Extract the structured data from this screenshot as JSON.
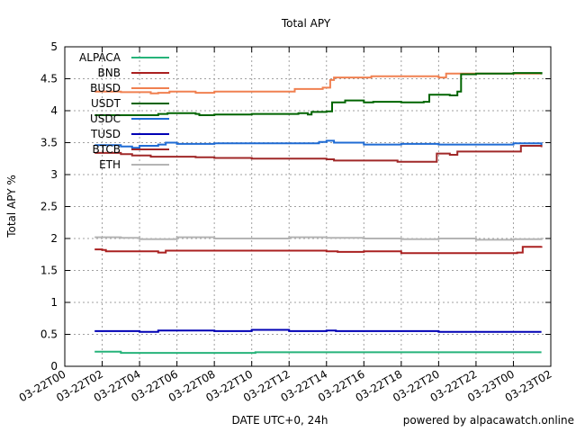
{
  "chart_data": {
    "type": "line",
    "title": "Total APY",
    "xlabel": "DATE UTC+0, 24h",
    "ylabel": "Total APY %",
    "credit": "powered by alpacawatch.online",
    "grid": true,
    "legend_position": "top-left",
    "ylim": [
      0,
      5
    ],
    "y_ticks": [
      "0",
      "0.5",
      "1",
      "1.5",
      "2",
      "2.5",
      "3",
      "3.5",
      "4",
      "4.5",
      "5"
    ],
    "xlim_hours": [
      0,
      26
    ],
    "x_ticks": [
      "03-22T00",
      "03-22T02",
      "03-22T04",
      "03-22T06",
      "03-22T08",
      "03-22T10",
      "03-22T12",
      "03-22T14",
      "03-22T16",
      "03-22T18",
      "03-22T20",
      "03-22T22",
      "03-23T00",
      "03-23T02"
    ],
    "series": [
      {
        "name": "ALPACA",
        "color": "#26b37a",
        "x": [
          1.6,
          2.8,
          3.0,
          10.0,
          10.2,
          25.5
        ],
        "y": [
          0.23,
          0.23,
          0.21,
          0.21,
          0.22,
          0.22
        ]
      },
      {
        "name": "BNB",
        "color": "#aa2020",
        "x": [
          1.6,
          2.0,
          2.2,
          4.5,
          5.0,
          5.4,
          10.0,
          14.0,
          14.6,
          16.0,
          18.0,
          20.2,
          20.4,
          24.2,
          24.5,
          25.5
        ],
        "y": [
          1.83,
          1.82,
          1.8,
          1.8,
          1.78,
          1.81,
          1.81,
          1.8,
          1.79,
          1.8,
          1.77,
          1.77,
          1.77,
          1.78,
          1.87,
          1.88
        ]
      },
      {
        "name": "BUSD",
        "color": "#f08050",
        "x": [
          1.6,
          3.0,
          4.0,
          4.6,
          5.0,
          5.6,
          7.0,
          8.0,
          12.0,
          12.3,
          13.8,
          14.2,
          14.4,
          16.0,
          16.4,
          18.0,
          20.0,
          20.4,
          21.0,
          24.0,
          25.5
        ],
        "y": [
          4.3,
          4.29,
          4.29,
          4.27,
          4.28,
          4.3,
          4.28,
          4.3,
          4.3,
          4.34,
          4.36,
          4.48,
          4.52,
          4.52,
          4.54,
          4.54,
          4.52,
          4.58,
          4.58,
          4.58,
          4.58
        ]
      },
      {
        "name": "USDT",
        "color": "#006400",
        "x": [
          1.6,
          3.0,
          5.0,
          5.5,
          7.0,
          7.2,
          8.0,
          10.0,
          12.0,
          12.5,
          13.0,
          13.2,
          14.0,
          14.3,
          15.0,
          16.0,
          16.5,
          18.0,
          19.2,
          19.5,
          20.6,
          21.0,
          21.2,
          22.0,
          24.0,
          25.5
        ],
        "y": [
          3.93,
          3.93,
          3.95,
          3.96,
          3.95,
          3.93,
          3.94,
          3.95,
          3.95,
          3.96,
          3.94,
          3.98,
          3.99,
          4.13,
          4.16,
          4.13,
          4.14,
          4.13,
          4.14,
          4.25,
          4.24,
          4.3,
          4.57,
          4.58,
          4.59,
          4.57
        ]
      },
      {
        "name": "USDC",
        "color": "#1f6bd4",
        "x": [
          1.6,
          3.0,
          3.6,
          4.0,
          4.6,
          5.0,
          5.4,
          6.0,
          8.0,
          10.0,
          12.0,
          13.6,
          14.0,
          14.4,
          16.0,
          18.0,
          20.0,
          22.0,
          24.0,
          25.3,
          25.5
        ],
        "y": [
          3.46,
          3.44,
          3.42,
          3.45,
          3.45,
          3.47,
          3.5,
          3.48,
          3.49,
          3.49,
          3.49,
          3.51,
          3.53,
          3.5,
          3.47,
          3.48,
          3.47,
          3.47,
          3.49,
          3.49,
          3.46
        ]
      },
      {
        "name": "TUSD",
        "color": "#0000b4",
        "x": [
          1.6,
          3.0,
          4.0,
          5.0,
          6.0,
          8.0,
          10.0,
          12.0,
          14.0,
          14.5,
          16.0,
          20.0,
          24.0,
          25.5
        ],
        "y": [
          0.55,
          0.55,
          0.54,
          0.56,
          0.56,
          0.55,
          0.57,
          0.55,
          0.56,
          0.55,
          0.55,
          0.54,
          0.54,
          0.54
        ]
      },
      {
        "name": "BTCB",
        "color": "#a02828",
        "x": [
          1.6,
          3.0,
          3.6,
          4.6,
          5.0,
          7.0,
          8.0,
          10.0,
          12.0,
          14.0,
          14.4,
          16.0,
          17.8,
          19.6,
          19.9,
          20.6,
          21.0,
          24.0,
          24.4,
          25.5
        ],
        "y": [
          3.34,
          3.32,
          3.3,
          3.28,
          3.28,
          3.27,
          3.26,
          3.25,
          3.25,
          3.24,
          3.22,
          3.22,
          3.2,
          3.2,
          3.33,
          3.31,
          3.36,
          3.36,
          3.45,
          3.43
        ]
      },
      {
        "name": "ETH",
        "color": "#b4b4b4",
        "x": [
          1.6,
          3.0,
          4.0,
          6.0,
          8.0,
          10.0,
          12.0,
          14.0,
          16.0,
          18.0,
          20.0,
          22.0,
          24.0,
          25.5
        ],
        "y": [
          2.02,
          2.01,
          1.99,
          2.02,
          2.0,
          2.0,
          2.02,
          2.01,
          2.0,
          1.99,
          2.0,
          1.98,
          1.99,
          2.01
        ]
      }
    ]
  }
}
